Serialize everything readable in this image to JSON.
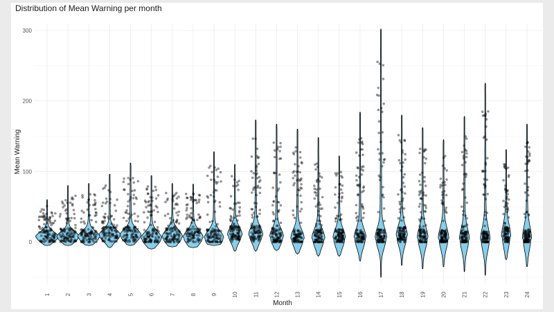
{
  "chart_data": {
    "type": "violin",
    "title": "Distribution of Mean Warning per month",
    "xlabel": "Month",
    "ylabel": "Mean Warning",
    "ylim": [
      -60,
      310
    ],
    "yticks": [
      "0",
      "100",
      "200",
      "300"
    ],
    "grid": true,
    "violin_fill": "#87ceeb",
    "point_color": "#000000",
    "categories": [
      "1",
      "2",
      "3",
      "4",
      "5",
      "6",
      "7",
      "8",
      "9",
      "10",
      "11",
      "12",
      "13",
      "14",
      "15",
      "16",
      "17",
      "18",
      "19",
      "20",
      "21",
      "22",
      "23",
      "24"
    ],
    "violin_max": [
      60,
      80,
      83,
      96,
      112,
      94,
      83,
      82,
      128,
      110,
      173,
      167,
      160,
      148,
      122,
      184,
      302,
      180,
      162,
      145,
      178,
      225,
      131,
      167
    ],
    "violin_min": [
      -5,
      -5,
      -5,
      -8,
      -5,
      -10,
      -7,
      -8,
      -5,
      -13,
      -13,
      -12,
      -17,
      -20,
      -20,
      -27,
      -50,
      -33,
      -38,
      -35,
      -42,
      -47,
      -25,
      -35
    ],
    "violin_mode": [
      7,
      7,
      7,
      9,
      9,
      5,
      7,
      6,
      5,
      10,
      10,
      7,
      5,
      5,
      5,
      5,
      5,
      8,
      5,
      5,
      3,
      3,
      8,
      5
    ]
  }
}
